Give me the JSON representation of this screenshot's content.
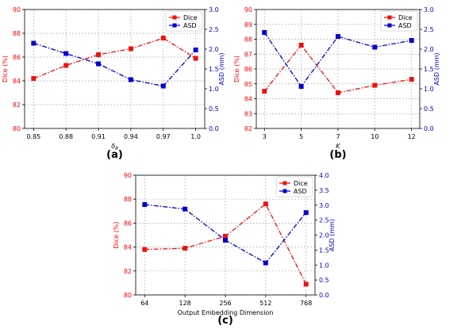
{
  "chart_data": [
    {
      "type": "line",
      "panel_label": "(a)",
      "xlabel": "δ_θ",
      "x": [
        "0.85",
        "0.88",
        "0.91",
        "0.94",
        "0.97",
        "1.0"
      ],
      "y_left": {
        "label": "Dice (%)",
        "lim": [
          80,
          90
        ],
        "ticks": [
          "80",
          "82",
          "84",
          "86",
          "88",
          "90"
        ],
        "color": "#ff0000"
      },
      "y_right": {
        "label": "ASD (mm)",
        "lim": [
          0,
          3.0
        ],
        "ticks": [
          "0.0",
          "0.5",
          "1.0",
          "1.5",
          "2.0",
          "2.5",
          "3.0"
        ],
        "color": "#0000cc"
      },
      "series": [
        {
          "name": "Dice",
          "axis": "left",
          "color": "#ee1111",
          "values": [
            84.2,
            85.3,
            86.2,
            86.7,
            87.6,
            85.9
          ]
        },
        {
          "name": "ASD",
          "axis": "right",
          "color": "#0000cc",
          "values": [
            2.15,
            1.89,
            1.63,
            1.23,
            1.07,
            1.98
          ]
        }
      ],
      "grid": true,
      "legend": "top-right"
    },
    {
      "type": "line",
      "panel_label": "(b)",
      "xlabel": "K",
      "x": [
        "3",
        "5",
        "7",
        "10",
        "12"
      ],
      "y_left": {
        "label": "Dice (%)",
        "lim": [
          82,
          90
        ],
        "ticks": [
          "82",
          "83",
          "84",
          "85",
          "86",
          "87",
          "88",
          "89",
          "90"
        ],
        "color": "#ff0000"
      },
      "y_right": {
        "label": "ASD (mm)",
        "lim": [
          0,
          3.0
        ],
        "ticks": [
          "0.0",
          "0.5",
          "1.0",
          "1.5",
          "2.0",
          "2.5",
          "3.0"
        ],
        "color": "#0000cc"
      },
      "series": [
        {
          "name": "Dice",
          "axis": "left",
          "color": "#ee1111",
          "values": [
            84.5,
            87.6,
            84.4,
            84.9,
            85.3
          ]
        },
        {
          "name": "ASD",
          "axis": "right",
          "color": "#0000cc",
          "values": [
            2.42,
            1.06,
            2.32,
            2.05,
            2.22
          ]
        }
      ],
      "grid": true,
      "legend": "top-right"
    },
    {
      "type": "line",
      "panel_label": "(c)",
      "xlabel": "Output Embedding Dimension",
      "x": [
        "64",
        "128",
        "256",
        "512",
        "768"
      ],
      "y_left": {
        "label": "Dice (%)",
        "lim": [
          80,
          90
        ],
        "ticks": [
          "80",
          "82",
          "84",
          "86",
          "88",
          "90"
        ],
        "color": "#ff0000"
      },
      "y_right": {
        "label": "ASD (mm)",
        "lim": [
          0,
          4.0
        ],
        "ticks": [
          "0.0",
          "0.5",
          "1.0",
          "1.5",
          "2.0",
          "2.5",
          "3.0",
          "3.5",
          "4.0"
        ],
        "color": "#0000cc"
      },
      "series": [
        {
          "name": "Dice",
          "axis": "left",
          "color": "#ee1111",
          "values": [
            83.8,
            83.9,
            84.9,
            87.6,
            80.9
          ]
        },
        {
          "name": "ASD",
          "axis": "right",
          "color": "#0000cc",
          "values": [
            3.02,
            2.87,
            1.83,
            1.07,
            2.75
          ]
        }
      ],
      "grid": true,
      "legend": "top-right"
    }
  ]
}
